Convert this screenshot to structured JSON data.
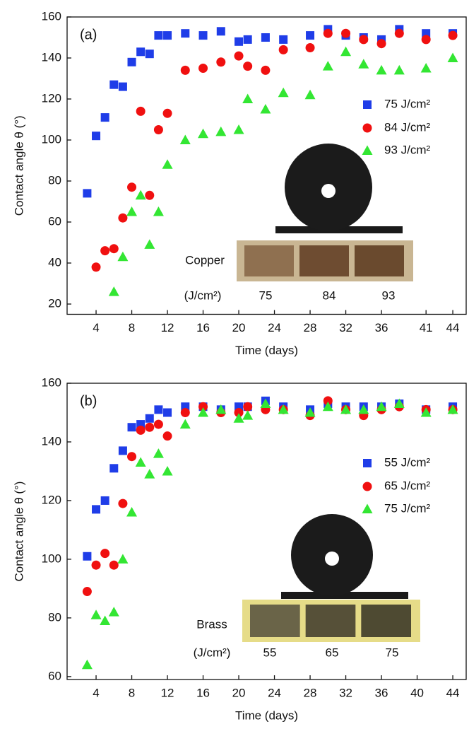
{
  "chart_data": [
    {
      "type": "scatter",
      "panel_label": "(a)",
      "xlabel": "Time (days)",
      "ylabel": "Contact angle θ (°)",
      "xlim": [
        0.75,
        45.5
      ],
      "ylim": [
        15,
        160
      ],
      "xticks": [
        4,
        8,
        12,
        16,
        20,
        24,
        28,
        32,
        36,
        41,
        44
      ],
      "yticks": [
        20,
        40,
        60,
        80,
        100,
        120,
        140,
        160
      ],
      "legend": "right",
      "series": [
        {
          "name": "75 J/cm²",
          "color": "#1f3de8",
          "marker": "square",
          "x": [
            3,
            4,
            5,
            6,
            7,
            8,
            9,
            10,
            11,
            12,
            14,
            16,
            18,
            20,
            21,
            23,
            25,
            28,
            30,
            32,
            34,
            36,
            38,
            41,
            44
          ],
          "values": [
            74,
            102,
            111,
            127,
            126,
            138,
            143,
            142,
            151,
            151,
            152,
            151,
            153,
            148,
            149,
            150,
            149,
            151,
            154,
            151,
            150,
            149,
            154,
            152,
            152
          ]
        },
        {
          "name": "84 J/cm²",
          "color": "#f01010",
          "marker": "circle",
          "x": [
            4,
            5,
            6,
            7,
            8,
            9,
            10,
            11,
            12,
            14,
            16,
            18,
            20,
            21,
            23,
            25,
            28,
            30,
            32,
            34,
            36,
            38,
            41,
            44
          ],
          "values": [
            38,
            46,
            47,
            62,
            77,
            114,
            73,
            105,
            113,
            134,
            135,
            138,
            141,
            136,
            134,
            144,
            145,
            152,
            152,
            149,
            147,
            152,
            149,
            151
          ]
        },
        {
          "name": "93 J/cm²",
          "color": "#33e633",
          "marker": "triangle",
          "x": [
            6,
            7,
            8,
            9,
            10,
            11,
            12,
            14,
            16,
            18,
            20,
            21,
            23,
            25,
            28,
            30,
            32,
            34,
            36,
            38,
            41,
            44
          ],
          "values": [
            26,
            43,
            65,
            73,
            49,
            65,
            88,
            100,
            103,
            104,
            105,
            120,
            115,
            123,
            122,
            136,
            143,
            137,
            134,
            134,
            135,
            140
          ]
        }
      ],
      "inset": {
        "material": "Copper",
        "unit_label": "(J/cm²)",
        "fluence_labels": [
          75,
          84,
          93
        ]
      }
    },
    {
      "type": "scatter",
      "panel_label": "(b)",
      "xlabel": "Time (days)",
      "ylabel": "Contact angle θ (°)",
      "xlim": [
        0.75,
        45.5
      ],
      "ylim": [
        59,
        160
      ],
      "xticks": [
        4,
        8,
        12,
        16,
        20,
        24,
        28,
        32,
        36,
        40,
        44
      ],
      "yticks": [
        60,
        80,
        100,
        120,
        140,
        160
      ],
      "legend": "right",
      "series": [
        {
          "name": "55 J/cm²",
          "color": "#1f3de8",
          "marker": "square",
          "x": [
            3,
            4,
            5,
            6,
            7,
            8,
            9,
            10,
            11,
            12,
            14,
            16,
            18,
            20,
            21,
            23,
            25,
            28,
            30,
            32,
            34,
            36,
            38,
            41,
            44
          ],
          "values": [
            101,
            117,
            120,
            131,
            137,
            145,
            146,
            148,
            151,
            150,
            152,
            152,
            151,
            152,
            152,
            154,
            152,
            151,
            153,
            152,
            152,
            152,
            153,
            151,
            152
          ]
        },
        {
          "name": "65 J/cm²",
          "color": "#f01010",
          "marker": "circle",
          "x": [
            3,
            4,
            5,
            6,
            7,
            8,
            9,
            10,
            11,
            12,
            14,
            16,
            18,
            20,
            21,
            23,
            25,
            28,
            30,
            32,
            34,
            36,
            38,
            41,
            44
          ],
          "values": [
            89,
            98,
            102,
            98,
            119,
            135,
            144,
            145,
            146,
            142,
            150,
            152,
            150,
            150,
            152,
            151,
            151,
            149,
            154,
            151,
            149,
            151,
            152,
            151,
            151
          ]
        },
        {
          "name": "75 J/cm²",
          "color": "#33e633",
          "marker": "triangle",
          "x": [
            3,
            4,
            5,
            6,
            7,
            8,
            9,
            10,
            11,
            12,
            14,
            16,
            18,
            20,
            21,
            23,
            25,
            28,
            30,
            32,
            34,
            36,
            38,
            41,
            44
          ],
          "values": [
            64,
            81,
            79,
            82,
            100,
            116,
            133,
            129,
            136,
            130,
            146,
            150,
            151,
            148,
            149,
            153,
            151,
            150,
            152,
            151,
            151,
            152,
            153,
            150,
            151
          ]
        }
      ],
      "inset": {
        "material": "Brass",
        "unit_label": "(J/cm²)",
        "fluence_labels": [
          55,
          65,
          75
        ]
      }
    }
  ]
}
